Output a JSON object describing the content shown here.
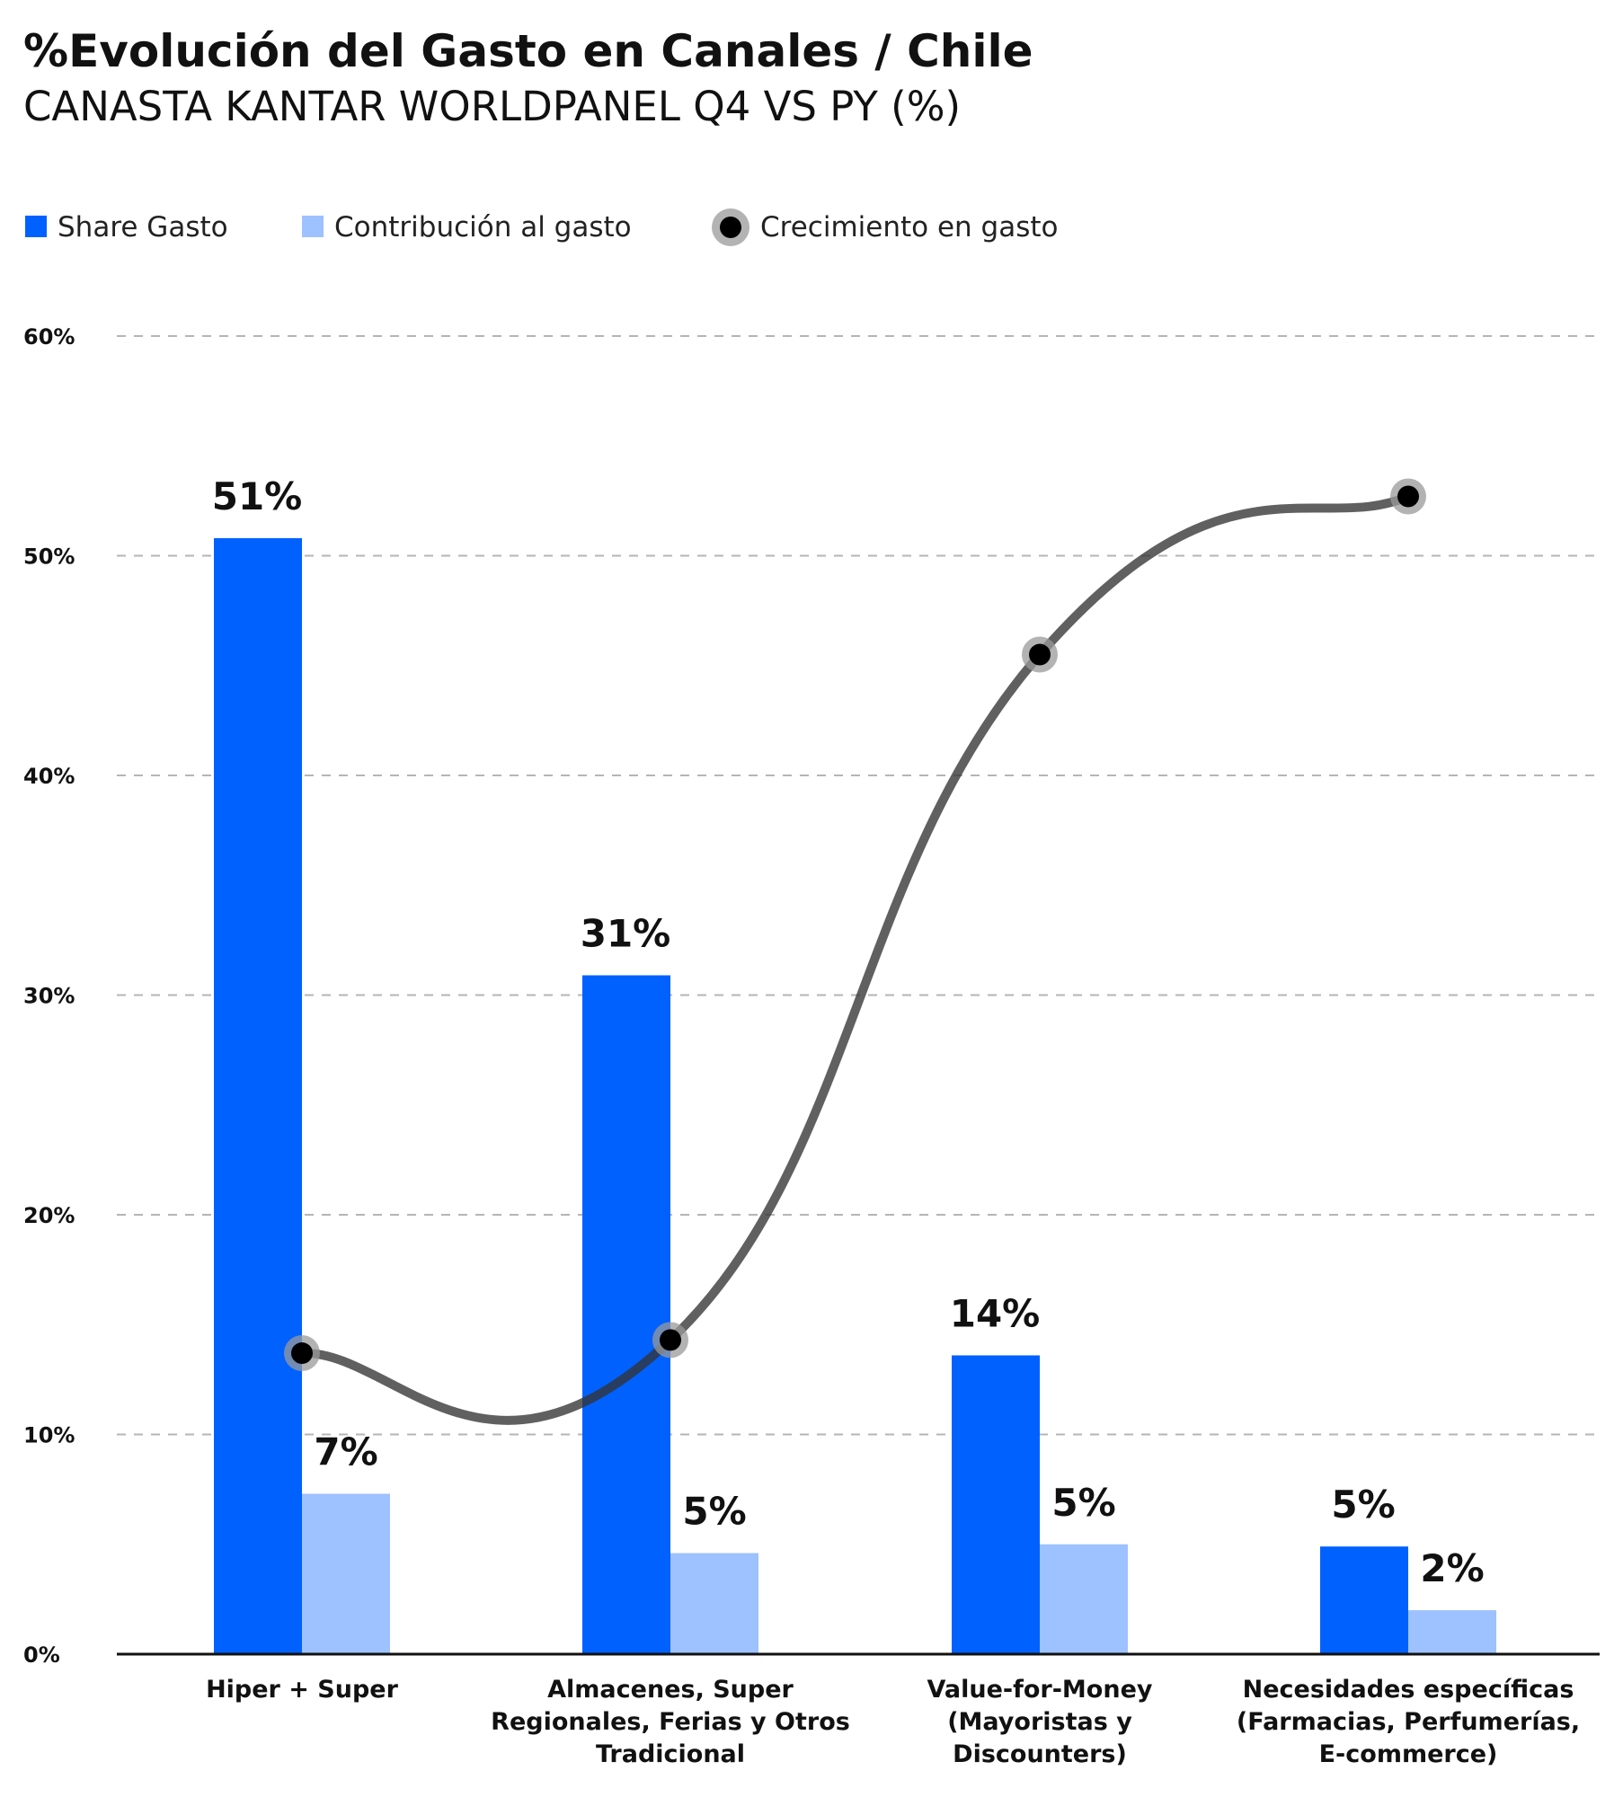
{
  "chart_data": {
    "type": "bar",
    "title": "%Evolución del Gasto en Canales / Chile",
    "subtitle": "CANASTA KANTAR WORLDPANEL  Q4 VS PY (%)",
    "categories": [
      [
        "Hiper + Super"
      ],
      [
        "Almacenes, Super",
        "Regionales, Ferias y Otros",
        "Tradicional"
      ],
      [
        "Value-for-Money",
        "(Mayoristas y",
        "Discounters)"
      ],
      [
        "Necesidades específicas",
        "(Farmacias, Perfumerías,",
        "E-commerce)"
      ]
    ],
    "series": [
      {
        "name": "Share Gasto",
        "kind": "bar",
        "color": "#0061ff",
        "values": [
          50.8,
          30.9,
          13.6,
          4.9
        ],
        "labels": [
          "51%",
          "31%",
          "14%",
          "5%"
        ]
      },
      {
        "name": "Contribución al gasto",
        "kind": "bar",
        "color": "#9ec1ff",
        "values": [
          7.3,
          4.6,
          5.0,
          2.0
        ],
        "labels": [
          "7%",
          "5%",
          "5%",
          "2%"
        ]
      },
      {
        "name": "Crecimiento en gasto",
        "kind": "line",
        "color": "#555555",
        "values": [
          13.7,
          14.3,
          45.5,
          52.7
        ]
      }
    ],
    "yticks": [
      "60%",
      "50%",
      "40%",
      "30%",
      "20%",
      "10%",
      "0%"
    ],
    "ylim": [
      0,
      60
    ],
    "grid": true,
    "legend_position": "top-left"
  }
}
